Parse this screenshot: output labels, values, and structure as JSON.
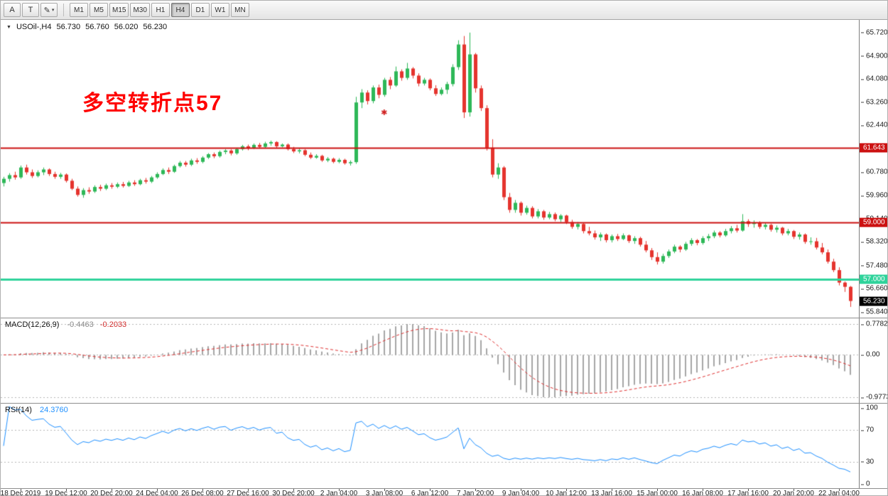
{
  "toolbar": {
    "tools": [
      {
        "name": "cursor",
        "label": "A"
      },
      {
        "name": "text",
        "label": "T"
      },
      {
        "name": "drawings",
        "label": "✎",
        "caret": "▾"
      }
    ],
    "timeframes": [
      "M1",
      "M5",
      "M15",
      "M30",
      "H1",
      "H4",
      "D1",
      "W1",
      "MN"
    ],
    "active_timeframe": "H4"
  },
  "legend": {
    "marker": "▼",
    "symbol_period": "USOil-,H4",
    "open": "56.730",
    "high": "56.760",
    "low": "56.020",
    "close": "56.230"
  },
  "annotation": {
    "text": "多空转折点57",
    "color": "#ff0000"
  },
  "price_axis": {
    "min": 55.64,
    "max": 66.17,
    "ticks": [
      "65.720",
      "64.900",
      "64.080",
      "63.260",
      "62.440",
      "61.620",
      "60.780",
      "59.960",
      "59.140",
      "58.320",
      "57.480",
      "56.660",
      "55.840"
    ]
  },
  "hlines": [
    {
      "value": 61.643,
      "label": "61.643",
      "color": "#cc1111",
      "width": 2
    },
    {
      "value": 59.0,
      "label": "59.000",
      "color": "#cc1111",
      "width": 2
    },
    {
      "value": 57.0,
      "label": "57.000",
      "color": "#2fd39b",
      "width": 3
    }
  ],
  "current_price": {
    "value": 56.23,
    "label": "56.230",
    "bg": "#000000"
  },
  "chart_data": {
    "type": "candlestick",
    "symbol": "USOil-",
    "timeframe": "H4",
    "title": "USOil-,H4",
    "up_color": "#2eb858",
    "down_color": "#e5342e",
    "price_range": [
      55.64,
      66.17
    ],
    "candles": [
      [
        60.4,
        60.62,
        60.28,
        60.55
      ],
      [
        60.55,
        60.75,
        60.45,
        60.68
      ],
      [
        60.68,
        60.8,
        60.52,
        60.6
      ],
      [
        60.6,
        61.02,
        60.55,
        60.95
      ],
      [
        60.95,
        61.05,
        60.7,
        60.78
      ],
      [
        60.78,
        60.88,
        60.58,
        60.65
      ],
      [
        60.65,
        60.85,
        60.6,
        60.78
      ],
      [
        60.78,
        60.95,
        60.68,
        60.88
      ],
      [
        60.88,
        60.92,
        60.65,
        60.72
      ],
      [
        60.72,
        60.8,
        60.55,
        60.62
      ],
      [
        60.62,
        60.76,
        60.55,
        60.7
      ],
      [
        60.7,
        60.74,
        60.42,
        60.48
      ],
      [
        60.48,
        60.55,
        60.15,
        60.2
      ],
      [
        60.2,
        60.28,
        59.92,
        59.98
      ],
      [
        59.98,
        60.22,
        59.88,
        60.15
      ],
      [
        60.15,
        60.25,
        60.02,
        60.1
      ],
      [
        60.1,
        60.32,
        60.05,
        60.26
      ],
      [
        60.26,
        60.34,
        60.12,
        60.2
      ],
      [
        60.2,
        60.38,
        60.15,
        60.32
      ],
      [
        60.32,
        60.4,
        60.2,
        60.27
      ],
      [
        60.27,
        60.42,
        60.22,
        60.36
      ],
      [
        60.36,
        60.44,
        60.24,
        60.3
      ],
      [
        60.3,
        60.48,
        60.26,
        60.42
      ],
      [
        60.42,
        60.5,
        60.3,
        60.36
      ],
      [
        60.36,
        60.55,
        60.32,
        60.5
      ],
      [
        60.5,
        60.58,
        60.38,
        60.45
      ],
      [
        60.45,
        60.65,
        60.4,
        60.6
      ],
      [
        60.6,
        60.78,
        60.55,
        60.72
      ],
      [
        60.72,
        60.92,
        60.68,
        60.86
      ],
      [
        60.86,
        60.95,
        60.72,
        60.8
      ],
      [
        60.8,
        61.05,
        60.76,
        61.0
      ],
      [
        61.0,
        61.18,
        60.95,
        61.12
      ],
      [
        61.12,
        61.18,
        60.98,
        61.05
      ],
      [
        61.05,
        61.26,
        61.0,
        61.2
      ],
      [
        61.2,
        61.28,
        61.08,
        61.15
      ],
      [
        61.15,
        61.35,
        61.1,
        61.3
      ],
      [
        61.3,
        61.46,
        61.25,
        61.42
      ],
      [
        61.42,
        61.48,
        61.28,
        61.35
      ],
      [
        61.35,
        61.55,
        61.3,
        61.5
      ],
      [
        61.5,
        61.6,
        61.42,
        61.55
      ],
      [
        61.55,
        61.6,
        61.38,
        61.45
      ],
      [
        61.45,
        61.65,
        61.4,
        61.6
      ],
      [
        61.6,
        61.75,
        61.55,
        61.7
      ],
      [
        61.7,
        61.76,
        61.56,
        61.64
      ],
      [
        61.64,
        61.8,
        61.6,
        61.75
      ],
      [
        61.75,
        61.82,
        61.62,
        61.68
      ],
      [
        61.68,
        61.86,
        61.64,
        61.8
      ],
      [
        61.8,
        61.9,
        61.72,
        61.85
      ],
      [
        61.85,
        61.88,
        61.64,
        61.7
      ],
      [
        61.7,
        61.8,
        61.66,
        61.76
      ],
      [
        61.76,
        61.8,
        61.55,
        61.6
      ],
      [
        61.6,
        61.68,
        61.46,
        61.52
      ],
      [
        61.52,
        61.62,
        61.45,
        61.56
      ],
      [
        61.56,
        61.6,
        61.35,
        61.4
      ],
      [
        61.4,
        61.48,
        61.25,
        61.3
      ],
      [
        61.3,
        61.42,
        61.26,
        61.36
      ],
      [
        61.36,
        61.4,
        61.15,
        61.2
      ],
      [
        61.2,
        61.32,
        61.14,
        61.26
      ],
      [
        61.26,
        61.3,
        61.1,
        61.15
      ],
      [
        61.15,
        61.28,
        61.1,
        61.22
      ],
      [
        61.22,
        61.26,
        61.05,
        61.1
      ],
      [
        61.1,
        61.2,
        61.02,
        61.14
      ],
      [
        61.14,
        63.45,
        61.08,
        63.25
      ],
      [
        63.25,
        63.72,
        63.05,
        63.6
      ],
      [
        63.6,
        63.68,
        63.18,
        63.3
      ],
      [
        63.3,
        63.85,
        63.22,
        63.78
      ],
      [
        63.78,
        63.88,
        63.4,
        63.52
      ],
      [
        63.52,
        64.12,
        63.45,
        64.05
      ],
      [
        64.05,
        64.15,
        63.72,
        63.85
      ],
      [
        63.85,
        64.52,
        63.8,
        64.35
      ],
      [
        64.35,
        64.42,
        64.02,
        64.12
      ],
      [
        64.12,
        64.65,
        64.05,
        64.45
      ],
      [
        64.45,
        64.5,
        64.1,
        64.2
      ],
      [
        64.2,
        64.28,
        63.82,
        63.92
      ],
      [
        63.92,
        64.12,
        63.85,
        64.05
      ],
      [
        64.05,
        64.1,
        63.68,
        63.75
      ],
      [
        63.75,
        63.86,
        63.48,
        63.55
      ],
      [
        63.55,
        63.78,
        63.5,
        63.7
      ],
      [
        63.7,
        63.98,
        63.55,
        63.9
      ],
      [
        63.9,
        64.6,
        63.82,
        64.5
      ],
      [
        64.5,
        65.45,
        64.4,
        65.3
      ],
      [
        65.3,
        65.6,
        62.7,
        62.9
      ],
      [
        62.9,
        65.72,
        62.75,
        64.95
      ],
      [
        64.95,
        65.0,
        63.6,
        63.75
      ],
      [
        63.75,
        63.85,
        62.95,
        63.05
      ],
      [
        63.05,
        63.15,
        61.55,
        61.65
      ],
      [
        61.65,
        61.95,
        60.6,
        60.7
      ],
      [
        60.7,
        61.1,
        60.55,
        60.95
      ],
      [
        60.95,
        61.0,
        59.8,
        59.9
      ],
      [
        59.9,
        60.05,
        59.35,
        59.45
      ],
      [
        59.45,
        59.8,
        59.35,
        59.7
      ],
      [
        59.7,
        59.75,
        59.25,
        59.35
      ],
      [
        59.35,
        59.6,
        59.28,
        59.52
      ],
      [
        59.52,
        59.58,
        59.15,
        59.22
      ],
      [
        59.22,
        59.48,
        59.15,
        59.4
      ],
      [
        59.4,
        59.45,
        59.1,
        59.18
      ],
      [
        59.18,
        59.38,
        59.12,
        59.3
      ],
      [
        59.3,
        59.36,
        59.05,
        59.12
      ],
      [
        59.12,
        59.3,
        59.02,
        59.25
      ],
      [
        59.25,
        59.28,
        58.95,
        59.02
      ],
      [
        59.02,
        59.1,
        58.78,
        58.85
      ],
      [
        58.85,
        59.02,
        58.76,
        58.95
      ],
      [
        58.95,
        58.98,
        58.62,
        58.7
      ],
      [
        58.7,
        58.85,
        58.55,
        58.62
      ],
      [
        58.62,
        58.72,
        58.4,
        58.48
      ],
      [
        58.48,
        58.65,
        58.35,
        58.58
      ],
      [
        58.58,
        58.62,
        58.3,
        58.38
      ],
      [
        58.38,
        58.58,
        58.3,
        58.52
      ],
      [
        58.52,
        58.6,
        58.35,
        58.42
      ],
      [
        58.42,
        58.62,
        58.38,
        58.55
      ],
      [
        58.55,
        58.58,
        58.28,
        58.35
      ],
      [
        58.35,
        58.52,
        58.25,
        58.45
      ],
      [
        58.45,
        58.5,
        58.15,
        58.22
      ],
      [
        58.22,
        58.35,
        57.95,
        58.02
      ],
      [
        58.02,
        58.1,
        57.68,
        57.78
      ],
      [
        57.78,
        57.95,
        57.52,
        57.62
      ],
      [
        57.62,
        57.9,
        57.55,
        57.82
      ],
      [
        57.82,
        58.05,
        57.75,
        57.98
      ],
      [
        57.98,
        58.22,
        57.92,
        58.15
      ],
      [
        58.15,
        58.2,
        57.95,
        58.05
      ],
      [
        58.05,
        58.32,
        58.0,
        58.25
      ],
      [
        58.25,
        58.45,
        58.18,
        58.38
      ],
      [
        58.38,
        58.42,
        58.2,
        58.28
      ],
      [
        58.28,
        58.52,
        58.22,
        58.45
      ],
      [
        58.45,
        58.6,
        58.35,
        58.52
      ],
      [
        58.52,
        58.72,
        58.45,
        58.65
      ],
      [
        58.65,
        58.7,
        58.48,
        58.55
      ],
      [
        58.55,
        58.78,
        58.5,
        58.7
      ],
      [
        58.7,
        58.88,
        58.62,
        58.8
      ],
      [
        58.8,
        58.92,
        58.65,
        58.72
      ],
      [
        58.72,
        59.3,
        58.68,
        59.05
      ],
      [
        59.05,
        59.12,
        58.85,
        58.95
      ],
      [
        58.95,
        59.08,
        58.82,
        59.0
      ],
      [
        59.0,
        59.05,
        58.78,
        58.85
      ],
      [
        58.85,
        59.0,
        58.76,
        58.92
      ],
      [
        58.92,
        58.96,
        58.68,
        58.75
      ],
      [
        58.75,
        58.9,
        58.65,
        58.82
      ],
      [
        58.82,
        58.85,
        58.55,
        58.62
      ],
      [
        58.62,
        58.78,
        58.55,
        58.7
      ],
      [
        58.7,
        58.74,
        58.42,
        58.5
      ],
      [
        58.5,
        58.65,
        58.4,
        58.58
      ],
      [
        58.58,
        58.62,
        58.25,
        58.32
      ],
      [
        58.32,
        58.48,
        58.22,
        58.34
      ],
      [
        58.34,
        58.46,
        58.05,
        58.12
      ],
      [
        58.12,
        58.28,
        57.88,
        57.95
      ],
      [
        57.95,
        58.05,
        57.55,
        57.62
      ],
      [
        57.62,
        57.72,
        57.25,
        57.32
      ],
      [
        57.32,
        57.42,
        56.78,
        56.88
      ],
      [
        56.88,
        56.92,
        56.55,
        56.73
      ],
      [
        56.73,
        56.76,
        56.02,
        56.23
      ]
    ],
    "time_labels": [
      {
        "i": 3,
        "t": "18 Dec 2019"
      },
      {
        "i": 11,
        "t": "19 Dec 12:00"
      },
      {
        "i": 19,
        "t": "20 Dec 20:00"
      },
      {
        "i": 27,
        "t": "24 Dec 04:00"
      },
      {
        "i": 35,
        "t": "26 Dec 08:00"
      },
      {
        "i": 43,
        "t": "27 Dec 16:00"
      },
      {
        "i": 51,
        "t": "30 Dec 20:00"
      },
      {
        "i": 59,
        "t": "2 Jan 04:00"
      },
      {
        "i": 67,
        "t": "3 Jan 08:00"
      },
      {
        "i": 75,
        "t": "6 Jan 12:00"
      },
      {
        "i": 83,
        "t": "7 Jan 20:00"
      },
      {
        "i": 91,
        "t": "9 Jan 04:00"
      },
      {
        "i": 99,
        "t": "10 Jan 12:00"
      },
      {
        "i": 107,
        "t": "13 Jan 16:00"
      },
      {
        "i": 115,
        "t": "15 Jan 00:00"
      },
      {
        "i": 123,
        "t": "16 Jan 08:00"
      },
      {
        "i": 131,
        "t": "17 Jan 16:00"
      },
      {
        "i": 139,
        "t": "20 Jan 20:00"
      },
      {
        "i": 147,
        "t": "22 Jan 04:00"
      }
    ],
    "marker": {
      "i": 67,
      "price": 62.9,
      "glyph": "✱",
      "color": "#d02020"
    },
    "indicators": [
      {
        "name": "MACD",
        "label": "MACD(12,26,9)",
        "params": [
          12,
          26,
          9
        ],
        "main_value": "-0.4463",
        "signal_value": "-0.2033",
        "axis_labels": [
          "0.7782",
          "0.00",
          "-0.9773"
        ],
        "histogram_color": "#a6a6a6",
        "signal_color": "#e03030"
      },
      {
        "name": "RSI",
        "label": "RSI(14)",
        "params": [
          14
        ],
        "value": "24.3760",
        "levels": [
          70,
          30
        ],
        "axis_ticks": [
          "100",
          "70",
          "30",
          "0"
        ],
        "line_color": "#1e90ff"
      }
    ]
  }
}
